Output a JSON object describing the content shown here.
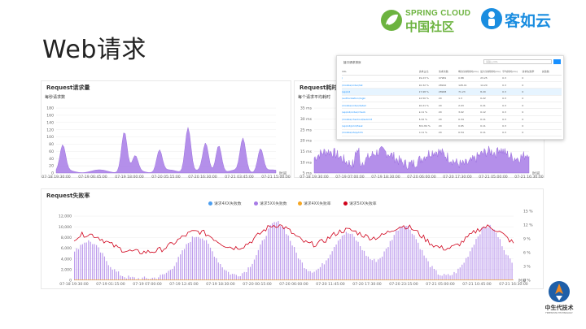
{
  "slide": {
    "title": "Web请求"
  },
  "logos": {
    "spring_cloud_en": "SPRING CLOUD",
    "spring_cloud_cn": "中国社区",
    "keruyun": "客如云",
    "corner": "中生代技术",
    "corner_sub": "FREESHOW TECHNOLOGY"
  },
  "panels": {
    "request_count": {
      "title": "Request请求量",
      "subtitle": "每秒请求数",
      "y_ticks": [
        "180",
        "160",
        "140",
        "120",
        "100",
        "80",
        "60",
        "40",
        "20",
        "0"
      ],
      "x_ticks": [
        "07-18 19:30:00",
        "07-19 06:45:00",
        "07-19 18:00:00",
        "07-20 05:15:00",
        "07-20 16:30:00",
        "07-21 03:45:00",
        "07-21 15:00:00"
      ],
      "x_unit": "时间",
      "color": "#a77be6"
    },
    "request_latency": {
      "title": "Request耗时",
      "subtitle": "每个请求平均耗时",
      "y_ticks": [
        "35 ms",
        "30 ms",
        "25 ms",
        "20 ms",
        "15 ms",
        "10 ms",
        "5 ms"
      ],
      "x_ticks": [
        "07-18 19:30:00",
        "07-19 07:00:00",
        "07-19 18:30:00",
        "07-20 06:00:00",
        "07-20 17:30:00",
        "07-21 05:00:00",
        "07-21 16:30:00"
      ],
      "x_unit": "时间",
      "color": "#a77be6"
    },
    "request_failure": {
      "title": "Request失败率",
      "legend": [
        {
          "label": "请求4XX失败数",
          "color": "#4c9ef0"
        },
        {
          "label": "请求5XX失败数",
          "color": "#a77be6"
        },
        {
          "label": "请求4XX失败率",
          "color": "#f5a623"
        },
        {
          "label": "请求5XX失败率",
          "color": "#d0021b"
        }
      ],
      "y_ticks_left": [
        "12,000",
        "10,000",
        "8,000",
        "6,000",
        "4,000",
        "2,000",
        "0"
      ],
      "y_ticks_right": [
        "15 %",
        "12 %",
        "9 %",
        "6 %",
        "3 %",
        "0 %"
      ],
      "x_ticks": [
        "07-18 19:30:00",
        "07-19 01:15:00",
        "07-19 07:00:00",
        "07-19 12:45:00",
        "07-19 18:30:00",
        "07-20 00:15:00",
        "07-20 06:00:00",
        "07-20 11:45:00",
        "07-20 17:30:00",
        "07-20 23:15:00",
        "07-21 05:00:00",
        "07-21 10:45:00",
        "07-21 16:30:00"
      ],
      "x_unit": "时间"
    }
  },
  "table": {
    "title": "接口请求排序",
    "search_placeholder": "请输入URL",
    "columns": [
      "URL",
      "请求占比",
      "请求次数",
      "每次请求耗时(ms)",
      "最大请求耗时(ms)",
      "平均耗时(ms)",
      "请求失败率",
      "失败数"
    ],
    "rows": [
      [
        "/",
        "29.23 %",
        "47981",
        "0.88",
        "23.25",
        "0.3",
        "0",
        ""
      ],
      [
        "/mobile/order/list",
        "10.32 %",
        "28910",
        "128.41",
        "14.20",
        "0.3",
        "0",
        ""
      ],
      [
        "/api/v2",
        "17.98 %",
        "28908",
        "71.23",
        "8.20",
        "0.3",
        "0",
        ""
      ],
      [
        "/authorization/login",
        "12.50 %",
        "20",
        "1.3",
        "0.22",
        "0.3",
        "0",
        ""
      ],
      [
        "/mobile/order/detail",
        "10.21 %",
        "20",
        "2.03",
        "0.21",
        "0.3",
        "0",
        ""
      ],
      [
        "/api/v2/order/check",
        "9.11 %",
        "20",
        "3.02",
        "0.12",
        "0.3",
        "0",
        ""
      ],
      [
        "/mobile/checkout/submit",
        "8.32 %",
        "20",
        "0.34",
        "0.11",
        "0.3",
        "0",
        ""
      ],
      [
        "/api/v2/print/task",
        "301.84 %",
        "20",
        "0.65",
        "0.11",
        "0.3",
        "0",
        ""
      ],
      [
        "/mobile/shop/info",
        "0.11 %",
        "20",
        "0.54",
        "0.11",
        "0.3",
        "0",
        ""
      ]
    ]
  }
}
